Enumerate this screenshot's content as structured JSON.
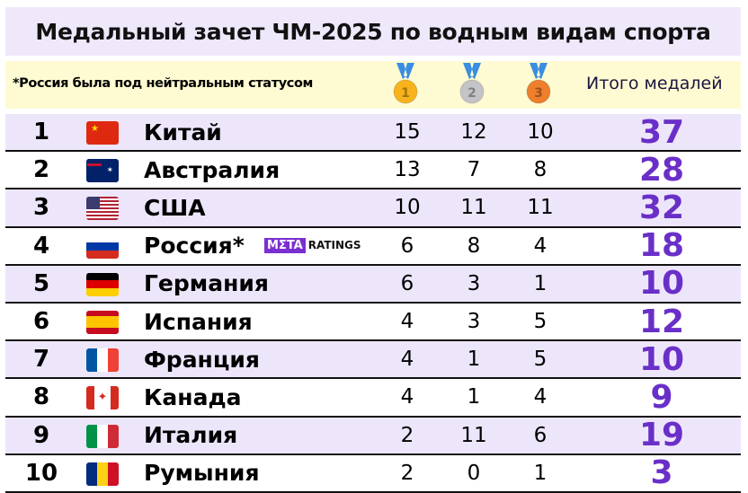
{
  "title": "Медальный зачет ЧМ-2025 по водным видам спорта",
  "header": {
    "note": "*Россия была под нейтральным статусом",
    "medals": [
      {
        "icon": "gold-medal-icon",
        "num": "1",
        "color": "#f7b21c"
      },
      {
        "icon": "silver-medal-icon",
        "num": "2",
        "color": "#c4c4c8"
      },
      {
        "icon": "bronze-medal-icon",
        "num": "3",
        "color": "#ee7f2c"
      }
    ],
    "total_label": "Итого медалей"
  },
  "logo": {
    "part1": "MΣTA",
    "part2": "RATINGS"
  },
  "colors": {
    "row_alt": "#ede6fb",
    "header": "#fefbd2",
    "total": "#6a2fc8"
  },
  "rows": [
    {
      "rank": "1",
      "country": "Китай",
      "flag": "china-flag-icon",
      "gold": "15",
      "silver": "12",
      "bronze": "10",
      "total": "37"
    },
    {
      "rank": "2",
      "country": "Австралия",
      "flag": "australia-flag-icon",
      "gold": "13",
      "silver": "7",
      "bronze": "8",
      "total": "28"
    },
    {
      "rank": "3",
      "country": "США",
      "flag": "usa-flag-icon",
      "gold": "10",
      "silver": "11",
      "bronze": "11",
      "total": "32"
    },
    {
      "rank": "4",
      "country": "Россия*",
      "flag": "russia-flag-icon",
      "gold": "6",
      "silver": "8",
      "bronze": "4",
      "total": "18"
    },
    {
      "rank": "5",
      "country": "Германия",
      "flag": "germany-flag-icon",
      "gold": "6",
      "silver": "3",
      "bronze": "1",
      "total": "10"
    },
    {
      "rank": "6",
      "country": "Испания",
      "flag": "spain-flag-icon",
      "gold": "4",
      "silver": "3",
      "bronze": "5",
      "total": "12"
    },
    {
      "rank": "7",
      "country": "Франция",
      "flag": "france-flag-icon",
      "gold": "4",
      "silver": "1",
      "bronze": "5",
      "total": "10"
    },
    {
      "rank": "8",
      "country": "Канада",
      "flag": "canada-flag-icon",
      "gold": "4",
      "silver": "1",
      "bronze": "4",
      "total": "9"
    },
    {
      "rank": "9",
      "country": "Италия",
      "flag": "italy-flag-icon",
      "gold": "2",
      "silver": "11",
      "bronze": "6",
      "total": "19"
    },
    {
      "rank": "10",
      "country": "Румыния",
      "flag": "romania-flag-icon",
      "gold": "2",
      "silver": "0",
      "bronze": "1",
      "total": "3"
    }
  ]
}
